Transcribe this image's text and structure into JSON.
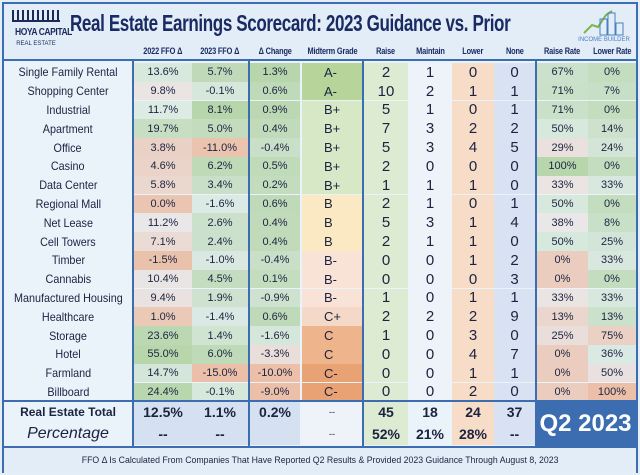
{
  "header": {
    "title": "Real Estate Earnings Scorecard: 2023 Guidance vs. Prior",
    "logo_left": "HOYA CAPITAL",
    "logo_left_sub": "REAL ESTATE",
    "logo_right": "INCOME BUILDER"
  },
  "columns": [
    "2022 FFO Δ",
    "2023 FFO Δ",
    "Δ Change",
    "Midterm Grade",
    "Raise",
    "Maintain",
    "Lower",
    "None",
    "Raise Rate",
    "Lower Rate"
  ],
  "rows": [
    [
      "Single Family Rental",
      "13.6%",
      "5.7%",
      "1.3%",
      "A-",
      "2",
      "1",
      "0",
      "0",
      "67%",
      "0%"
    ],
    [
      "Shopping Center",
      "9.8%",
      "-0.1%",
      "0.6%",
      "A-",
      "10",
      "2",
      "1",
      "1",
      "71%",
      "7%"
    ],
    [
      "Industrial",
      "11.7%",
      "8.1%",
      "0.9%",
      "B+",
      "5",
      "1",
      "0",
      "1",
      "71%",
      "0%"
    ],
    [
      "Apartment",
      "19.7%",
      "5.0%",
      "0.4%",
      "B+",
      "7",
      "3",
      "2",
      "2",
      "50%",
      "14%"
    ],
    [
      "Office",
      "3.8%",
      "-11.0%",
      "-0.4%",
      "B+",
      "5",
      "3",
      "4",
      "5",
      "29%",
      "24%"
    ],
    [
      "Casino",
      "4.6%",
      "6.2%",
      "0.5%",
      "B+",
      "2",
      "0",
      "0",
      "0",
      "100%",
      "0%"
    ],
    [
      "Data Center",
      "5.8%",
      "3.4%",
      "0.2%",
      "B+",
      "1",
      "1",
      "1",
      "0",
      "33%",
      "33%"
    ],
    [
      "Regional Mall",
      "0.0%",
      "-1.6%",
      "0.6%",
      "B",
      "2",
      "1",
      "0",
      "1",
      "50%",
      "0%"
    ],
    [
      "Net Lease",
      "11.2%",
      "2.6%",
      "0.4%",
      "B",
      "5",
      "3",
      "1",
      "4",
      "38%",
      "8%"
    ],
    [
      "Cell Towers",
      "7.1%",
      "2.4%",
      "0.4%",
      "B",
      "2",
      "1",
      "1",
      "0",
      "50%",
      "25%"
    ],
    [
      "Timber",
      "-1.5%",
      "-1.0%",
      "-0.4%",
      "B-",
      "0",
      "0",
      "1",
      "2",
      "0%",
      "33%"
    ],
    [
      "Cannabis",
      "10.4%",
      "4.5%",
      "0.1%",
      "B-",
      "0",
      "0",
      "0",
      "3",
      "0%",
      "0%"
    ],
    [
      "Manufactured Housing",
      "9.4%",
      "1.9%",
      "-0.9%",
      "B-",
      "1",
      "0",
      "1",
      "1",
      "33%",
      "33%"
    ],
    [
      "Healthcare",
      "1.0%",
      "-1.4%",
      "0.6%",
      "C+",
      "2",
      "2",
      "2",
      "9",
      "13%",
      "13%"
    ],
    [
      "Storage",
      "23.6%",
      "1.4%",
      "-1.6%",
      "C",
      "1",
      "0",
      "3",
      "0",
      "25%",
      "75%"
    ],
    [
      "Hotel",
      "55.0%",
      "6.0%",
      "-3.3%",
      "C",
      "0",
      "0",
      "4",
      "7",
      "0%",
      "36%"
    ],
    [
      "Farmland",
      "14.7%",
      "-15.0%",
      "-10.0%",
      "C-",
      "0",
      "0",
      "1",
      "1",
      "0%",
      "50%"
    ],
    [
      "Billboard",
      "24.4%",
      "-0.1%",
      "-9.0%",
      "C-",
      "0",
      "0",
      "2",
      "0",
      "0%",
      "100%"
    ]
  ],
  "total": [
    "Real Estate Total",
    "12.5%",
    "1.1%",
    "0.2%",
    "--",
    "45",
    "18",
    "24",
    "37"
  ],
  "percentage": [
    "Percentage",
    "--",
    "--",
    "",
    "--",
    "52%",
    "21%",
    "28%",
    "--"
  ],
  "period_badge": "Q2 2023",
  "footnote": "FFO Δ Is Calculated From Companies That Have Reported Q2 Results & Provided 2023 Guidance Through August 8, 2023",
  "colors": {
    "border": "#3b6db0",
    "title": "#1a2a62",
    "good": "#b9d7a0",
    "bad": "#eba57a"
  }
}
